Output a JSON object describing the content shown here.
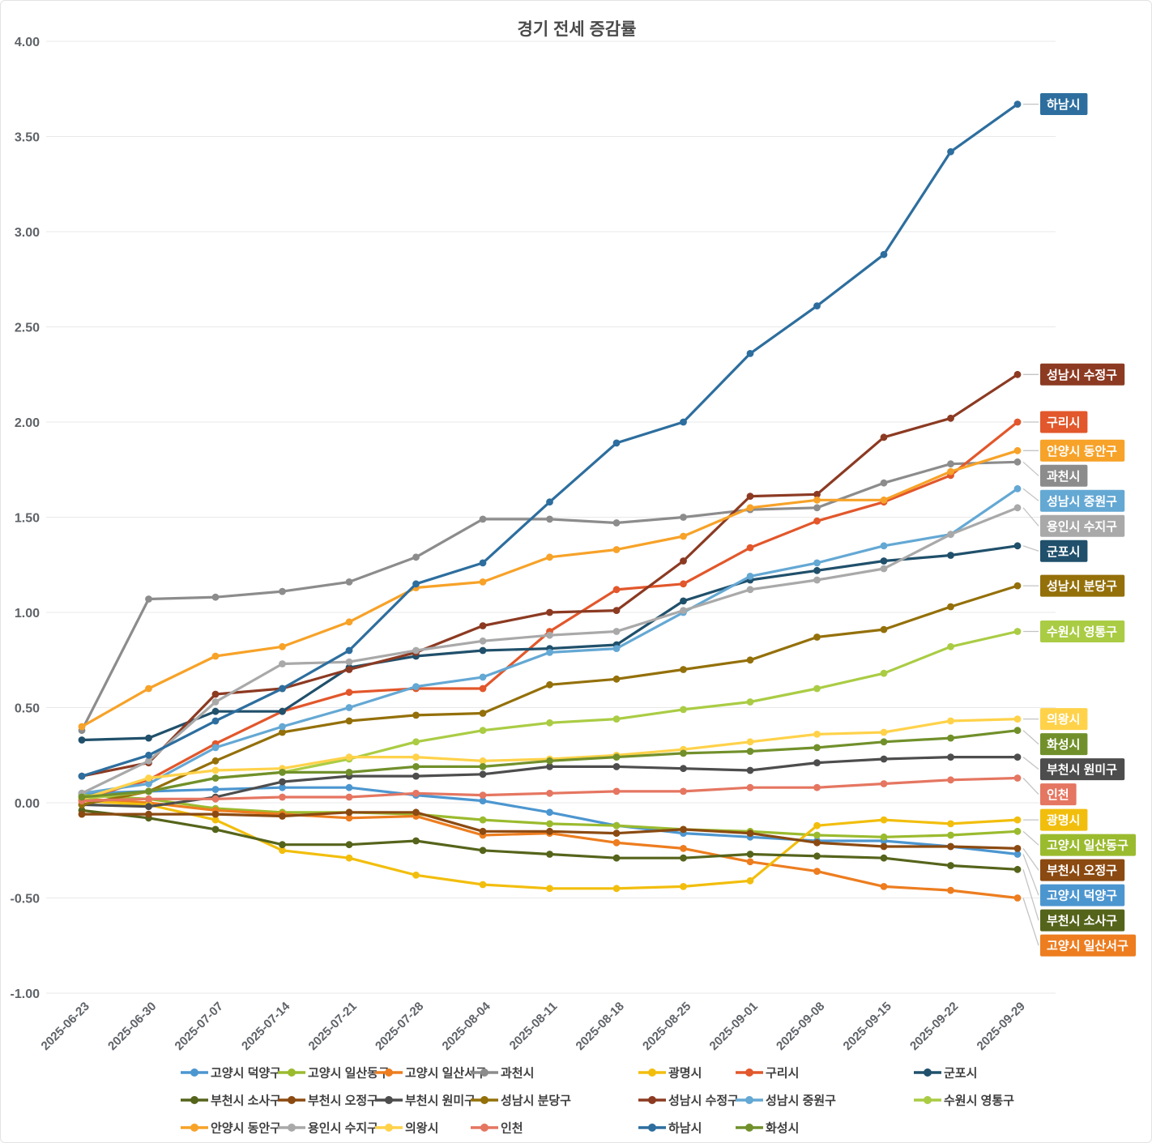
{
  "title": "경기 전세 증감률",
  "chart_data": {
    "type": "line",
    "title": "경기 전세 증감률",
    "xlabel": "",
    "ylabel": "",
    "ylim": [
      -1.0,
      4.0
    ],
    "ytick_step": 0.5,
    "grid": "horizontal",
    "legend_position": "bottom",
    "end_labels": true,
    "x": [
      "2025-06-23",
      "2025-06-30",
      "2025-07-07",
      "2025-07-14",
      "2025-07-21",
      "2025-07-28",
      "2025-08-04",
      "2025-08-11",
      "2025-08-18",
      "2025-08-25",
      "2025-09-01",
      "2025-09-08",
      "2025-09-15",
      "2025-09-22",
      "2025-09-29"
    ],
    "series": [
      {
        "name": "고양시 덕양구",
        "color": "#4c96d0",
        "values": [
          0.05,
          0.06,
          0.07,
          0.08,
          0.08,
          0.04,
          0.01,
          -0.05,
          -0.12,
          -0.16,
          -0.18,
          -0.2,
          -0.2,
          -0.23,
          -0.27
        ]
      },
      {
        "name": "고양시 일산동구",
        "color": "#9bbb2e",
        "values": [
          0.04,
          0.02,
          -0.03,
          -0.05,
          -0.05,
          -0.06,
          -0.09,
          -0.11,
          -0.12,
          -0.14,
          -0.15,
          -0.17,
          -0.18,
          -0.17,
          -0.15
        ]
      },
      {
        "name": "고양시 일산서구",
        "color": "#ed7d1f",
        "values": [
          0.02,
          0.0,
          -0.04,
          -0.06,
          -0.08,
          -0.07,
          -0.17,
          -0.16,
          -0.21,
          -0.24,
          -0.31,
          -0.36,
          -0.44,
          -0.46,
          -0.5
        ]
      },
      {
        "name": "과천시",
        "color": "#8c8c8c",
        "values": [
          0.38,
          1.07,
          1.08,
          1.11,
          1.16,
          1.29,
          1.49,
          1.49,
          1.47,
          1.5,
          1.54,
          1.55,
          1.68,
          1.78,
          1.79
        ]
      },
      {
        "name": "광명시",
        "color": "#f2be0d",
        "values": [
          0.01,
          -0.01,
          -0.09,
          -0.25,
          -0.29,
          -0.38,
          -0.43,
          -0.45,
          -0.45,
          -0.44,
          -0.41,
          -0.12,
          -0.09,
          -0.11,
          -0.09
        ]
      },
      {
        "name": "구리시",
        "color": "#e2572b",
        "values": [
          0.02,
          0.12,
          0.31,
          0.48,
          0.58,
          0.6,
          0.6,
          0.9,
          1.12,
          1.15,
          1.34,
          1.48,
          1.58,
          1.72,
          2.0
        ]
      },
      {
        "name": "군포시",
        "color": "#20506b",
        "values": [
          0.33,
          0.34,
          0.48,
          0.48,
          0.71,
          0.77,
          0.8,
          0.81,
          0.83,
          1.06,
          1.17,
          1.22,
          1.27,
          1.3,
          1.35
        ]
      },
      {
        "name": "부천시 소사구",
        "color": "#55641b",
        "values": [
          -0.04,
          -0.08,
          -0.14,
          -0.22,
          -0.22,
          -0.2,
          -0.25,
          -0.27,
          -0.29,
          -0.29,
          -0.27,
          -0.28,
          -0.29,
          -0.33,
          -0.35
        ]
      },
      {
        "name": "부천시 오정구",
        "color": "#8b4a11",
        "values": [
          -0.06,
          -0.06,
          -0.06,
          -0.07,
          -0.05,
          -0.05,
          -0.15,
          -0.15,
          -0.16,
          -0.14,
          -0.16,
          -0.21,
          -0.23,
          -0.23,
          -0.24
        ]
      },
      {
        "name": "부천시 원미구",
        "color": "#4d4d4d",
        "values": [
          -0.01,
          -0.02,
          0.03,
          0.11,
          0.14,
          0.14,
          0.15,
          0.19,
          0.19,
          0.18,
          0.17,
          0.21,
          0.23,
          0.24,
          0.24
        ]
      },
      {
        "name": "성남시 분당구",
        "color": "#94700a",
        "values": [
          -0.01,
          0.06,
          0.22,
          0.37,
          0.43,
          0.46,
          0.47,
          0.62,
          0.65,
          0.7,
          0.75,
          0.87,
          0.91,
          1.03,
          1.14
        ]
      },
      {
        "name": "성남시 수정구",
        "color": "#8c3a22",
        "values": [
          0.14,
          0.21,
          0.57,
          0.6,
          0.7,
          0.79,
          0.93,
          1.0,
          1.01,
          1.27,
          1.61,
          1.62,
          1.92,
          2.02,
          2.25
        ]
      },
      {
        "name": "성남시 중원구",
        "color": "#64a8d4",
        "values": [
          0.05,
          0.1,
          0.29,
          0.4,
          0.5,
          0.61,
          0.66,
          0.79,
          0.81,
          1.0,
          1.19,
          1.26,
          1.35,
          1.41,
          1.65
        ]
      },
      {
        "name": "수원시 영통구",
        "color": "#aacc44",
        "values": [
          0.02,
          0.06,
          0.13,
          0.16,
          0.23,
          0.32,
          0.38,
          0.42,
          0.44,
          0.49,
          0.53,
          0.6,
          0.68,
          0.82,
          0.9
        ]
      },
      {
        "name": "안양시 동안구",
        "color": "#f7a228",
        "values": [
          0.4,
          0.6,
          0.77,
          0.82,
          0.95,
          1.13,
          1.16,
          1.29,
          1.33,
          1.4,
          1.55,
          1.59,
          1.59,
          1.74,
          1.85
        ]
      },
      {
        "name": "용인시 수지구",
        "color": "#a9a9a9",
        "values": [
          0.05,
          0.22,
          0.53,
          0.73,
          0.74,
          0.8,
          0.85,
          0.88,
          0.9,
          1.01,
          1.12,
          1.17,
          1.23,
          1.41,
          1.55
        ]
      },
      {
        "name": "의왕시",
        "color": "#ffd24a",
        "values": [
          0.02,
          0.13,
          0.17,
          0.18,
          0.24,
          0.24,
          0.22,
          0.23,
          0.25,
          0.28,
          0.32,
          0.36,
          0.37,
          0.43,
          0.44
        ]
      },
      {
        "name": "인천",
        "color": "#e57661",
        "values": [
          0.01,
          0.02,
          0.02,
          0.03,
          0.03,
          0.05,
          0.04,
          0.05,
          0.06,
          0.06,
          0.08,
          0.08,
          0.1,
          0.12,
          0.13
        ]
      },
      {
        "name": "하남시",
        "color": "#2d6e9e",
        "values": [
          0.14,
          0.25,
          0.43,
          0.6,
          0.8,
          1.15,
          1.26,
          1.58,
          1.89,
          2.0,
          2.36,
          2.61,
          2.88,
          3.42,
          3.67
        ]
      },
      {
        "name": "화성시",
        "color": "#71902b",
        "values": [
          0.03,
          0.06,
          0.13,
          0.16,
          0.16,
          0.19,
          0.19,
          0.22,
          0.24,
          0.26,
          0.27,
          0.29,
          0.32,
          0.34,
          0.38
        ]
      }
    ],
    "legend_rows": [
      7,
      7,
      6
    ]
  }
}
